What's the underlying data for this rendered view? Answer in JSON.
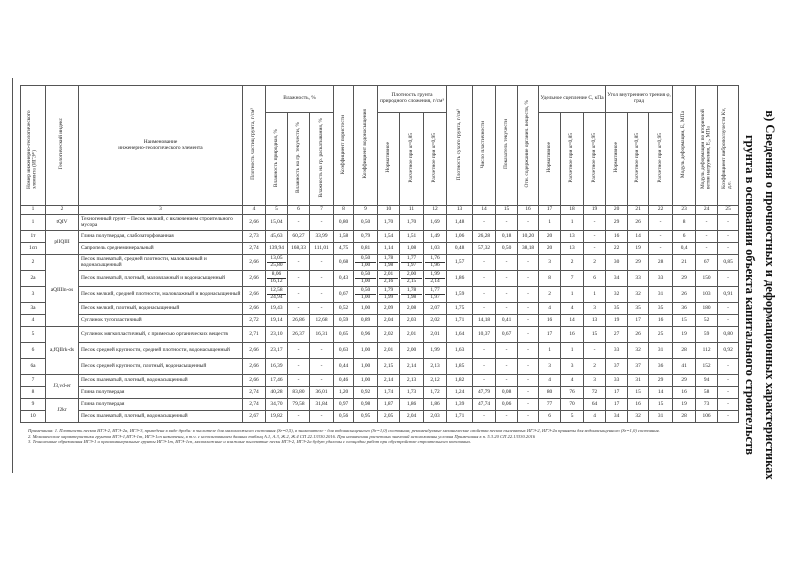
{
  "title": {
    "line1": "в) Сведения о прочностных и деформационных характеристиках",
    "line2": "грунта в основании объекта капитального строительств"
  },
  "header": {
    "c1": "Номер инженерно-геологического элемента (ИГЭ*)",
    "c2": "Геологический индекс",
    "c3a": "Наименование",
    "c3b": "инженерно-геологического элемента",
    "c4": "Плотность частиц грунта, г/см³",
    "moisture_group": "Влажность, %",
    "c5": "Влажность природная, %",
    "c6": "Влажность на гр. текучести, %",
    "c7": "Влажность на гр. раскатывания, %",
    "c8": "Коэффициент пористости",
    "c9": "Коэффициент водонасыщения",
    "density_group": "Плотность грунта природного сложения, г/см³",
    "c10": "Нормативное",
    "c11": "Расчетное при α=0,85",
    "c12": "Расчетное при α=0,95",
    "c13": "Плотность сухого грунта, г/см³",
    "c14": "Число пластичности",
    "c15": "Показатель текучести",
    "c16": "Отн. содержание органич. веществ, %",
    "cohesion_group": "Удельное сцепление С, кПа",
    "c17": "Нормативное",
    "c18": "Расчетное при α=0,85",
    "c19": "Расчетное при α=0,95",
    "friction_group": "Угол внутреннего трения φ, град",
    "c20": "Нормативное",
    "c21": "Расчетное при α=0,85",
    "c22": "Расчетное при α=0,95",
    "c23": "Модуль деформации, Е, МПа",
    "c24": "Модуль деформации по вторичной ветви нагружения, Е₂, МПа",
    "c25": "Коэффициент виброползучести Kv, д.е.",
    "numbers": [
      "1",
      "2",
      "3",
      "4",
      "5",
      "6",
      "7",
      "8",
      "9",
      "10",
      "11",
      "12",
      "13",
      "14",
      "15",
      "16",
      "17",
      "18",
      "19",
      "20",
      "21",
      "22",
      "23",
      "24",
      "25"
    ]
  },
  "rows": [
    {
      "ige": "1",
      "geo": "tQIV",
      "geo_span": 1,
      "name": "Техногенный грунт – Песок мелкий, с включением строительного мусора",
      "tall": true,
      "v": [
        "2,66",
        "15,04",
        "-",
        "-",
        "0,80",
        "0,50",
        "1,70",
        "1,70",
        "1,69",
        "1,48",
        "-",
        "-",
        "-",
        "1",
        "1",
        "-",
        "29",
        "26",
        "-",
        "8",
        "-",
        "-"
      ]
    },
    {
      "ige": "1т",
      "geo": "plIQIII",
      "geo_span": 2,
      "name": "Глина полутвердая, слабозаторфованная",
      "v": [
        "2,73",
        "45,63",
        "60,27",
        "33,99",
        "1,58",
        "0,79",
        "1,54",
        "1,51",
        "1,49",
        "1,06",
        "26,28",
        "0,18",
        "10,20",
        "20",
        "13",
        "-",
        "16",
        "14",
        "-",
        "6",
        "-",
        "-"
      ]
    },
    {
      "ige": "1сп",
      "name": "Сапропель среднеминеральный",
      "v": [
        "2,74",
        "139,94",
        "168,33",
        "111,01",
        "4,75",
        "0,81",
        "1,14",
        "1,08",
        "1,03",
        "0,48",
        "57,32",
        "0,50",
        "38,18",
        "20",
        "13",
        "-",
        "22",
        "19",
        "-",
        "0,4",
        "-",
        "-"
      ]
    },
    {
      "ige": "2",
      "geo": "aQIIIln-os",
      "geo_span": 5,
      "name": "Песок пылеватый, средней плотности, маловлажный и водонасыщенный",
      "tall": true,
      "v": [
        "2,66",
        "13,05/25,80",
        "-",
        "-",
        "0,68",
        "0,50/1,00",
        "1,78/1,98",
        "1,77/1,97",
        "1,76/1,96",
        "1,57",
        "-",
        "-",
        "-",
        "3",
        "2",
        "2",
        "30",
        "29",
        "28",
        "21",
        "67",
        "0,85"
      ]
    },
    {
      "ige": "2а",
      "name": "Песок пылеватый, плотный, маловлажный и водонасыщенный",
      "tall": true,
      "v": [
        "2,66",
        "8,06/16,12",
        "-",
        "-",
        "0,43",
        "0,50/1,00",
        "2,01/2,16",
        "2,00/2,15",
        "1,99/2,14",
        "1,86",
        "-",
        "-",
        "-",
        "8",
        "7",
        "6",
        "34",
        "33",
        "33",
        "29",
        "150",
        "-"
      ]
    },
    {
      "ige": "3",
      "name": "Песок мелкий, средней плотности, маловлажный и водонасыщенный",
      "tall": true,
      "v": [
        "2,66",
        "12,58/24,94",
        "-",
        "-",
        "0,67",
        "0,50/1,00",
        "1,79/1,99",
        "1,78/1,98",
        "1,77/1,97",
        "1,59",
        "-",
        "-",
        "-",
        "2",
        "1",
        "1",
        "32",
        "32",
        "31",
        "26",
        "103",
        "0,91"
      ]
    },
    {
      "ige": "3а",
      "name": "Песок мелкий, плотный, водонасыщенный",
      "v": [
        "2,66",
        "19,43",
        "-",
        "-",
        "0,52",
        "1,00",
        "2,09",
        "2,08",
        "2,07",
        "1,75",
        "-",
        "-",
        "-",
        "4",
        "4",
        "3",
        "35",
        "35",
        "35",
        "36",
        "180",
        "-"
      ]
    },
    {
      "ige": "4",
      "name": "Суглинок тугопластичный",
      "v": [
        "2,72",
        "19,14",
        "26,86",
        "12,68",
        "0,59",
        "0,89",
        "2,04",
        "2,03",
        "2,02",
        "1,71",
        "14,18",
        "0,41",
        "-",
        "16",
        "14",
        "13",
        "19",
        "17",
        "16",
        "15",
        "52",
        "-"
      ]
    },
    {
      "ige": "5",
      "geo": "a,fQIIrk-ds",
      "geo_span": 3,
      "name": "Суглинок мягкопластичный, с примесью органических веществ",
      "tall": true,
      "v": [
        "2,71",
        "23,10",
        "26,37",
        "16,31",
        "0,65",
        "0,96",
        "2,02",
        "2,01",
        "2,01",
        "1,64",
        "10,37",
        "0,67",
        "-",
        "17",
        "16",
        "15",
        "27",
        "26",
        "25",
        "19",
        "59",
        "0,80"
      ]
    },
    {
      "ige": "6",
      "name": "Песок средней крупности, средней плотности, водонасыщенный",
      "tall": true,
      "v": [
        "2,66",
        "23,17",
        "-",
        "-",
        "0,63",
        "1,00",
        "2,01",
        "2,00",
        "1,99",
        "1,63",
        "-",
        "-",
        "-",
        "1",
        "1",
        "-",
        "33",
        "32",
        "31",
        "28",
        "112",
        "0,92"
      ]
    },
    {
      "ige": "6а",
      "name": "Песок средней крупности, плотный, водонасыщенный",
      "tall": true,
      "v": [
        "2,66",
        "16,39",
        "-",
        "-",
        "0,44",
        "1,00",
        "2,15",
        "2,14",
        "2,13",
        "1,85",
        "-",
        "-",
        "-",
        "3",
        "3",
        "2",
        "37",
        "37",
        "36",
        "41",
        "152",
        "-"
      ]
    },
    {
      "ige": "7",
      "geo": "J3,vd-er",
      "geo_span": 2,
      "name": "Песок пылеватый, плотный, водонасыщенный",
      "v": [
        "2,66",
        "17,46",
        "-",
        "-",
        "0,46",
        "1,00",
        "2,14",
        "2,13",
        "2,12",
        "1,82",
        "-",
        "-",
        "-",
        "4",
        "4",
        "3",
        "33",
        "31",
        "29",
        "29",
        "94",
        "-"
      ]
    },
    {
      "ige": "8",
      "name": "Глина полутвердая",
      "v": [
        "2,74",
        "40,28",
        "83,80",
        "36,01",
        "1,20",
        "0,92",
        "1,74",
        "1,73",
        "1,72",
        "1,24",
        "47,79",
        "0,08",
        "-",
        "80",
        "76",
        "72",
        "17",
        "15",
        "14",
        "16",
        "58",
        "-"
      ]
    },
    {
      "ige": "9",
      "geo": "J2kr",
      "geo_span": 2,
      "name": "Глина полутвердая",
      "v": [
        "2,74",
        "34,70",
        "79,58",
        "31,84",
        "0,97",
        "0,98",
        "1,87",
        "1,86",
        "1,86",
        "1,39",
        "47,74",
        "0,06",
        "-",
        "77",
        "70",
        "64",
        "17",
        "16",
        "15",
        "19",
        "73",
        "-"
      ]
    },
    {
      "ige": "10",
      "name": "Песок пылеватый, плотный, водонасыщенный",
      "v": [
        "2,67",
        "19,82",
        "-",
        "-",
        "0,56",
        "0,95",
        "2,05",
        "2,04",
        "2,03",
        "1,71",
        "-",
        "-",
        "-",
        "6",
        "5",
        "4",
        "34",
        "32",
        "31",
        "28",
        "106",
        "-"
      ]
    }
  ],
  "notes": {
    "n1": "Примечания:   1. Плотность песков ИГЭ-2, ИГЭ-2а, ИГЭ-3, приведена в виде дроби: в числителе для маловлажного состояния (Sr=0,5), в знаменателе - для водонасыщенного (Sr=1,0) состояния; рекомендуемые механические свойства песков пылеватых ИГЭ-2, ИГЭ-2а приняты для водонасыщенного (Sr=1,0) состояния.",
    "n2": "2. Механические характеристики грунтов ИГЭ-1,ИГЭ-1т, ИГЭ-1сп назначены, в т.ч. с использованием данных таблиц А.1, А.3, Ж.2, Ж.4 СП 22.13330.2016. При назначении расчетных значений использованы условия Примечания к п. 5.3.20 СП 22.13330.2016",
    "n3": "3. Техногенные образования ИГЭ-1 и органоминеральные грунты ИГЭ-1т, ИГЭ-1сп, маловлажные и влажные пылеватые пески ИГЭ-2, ИГЭ-2а будут удалены с площадки работ при обустройстве строительного котлована."
  }
}
